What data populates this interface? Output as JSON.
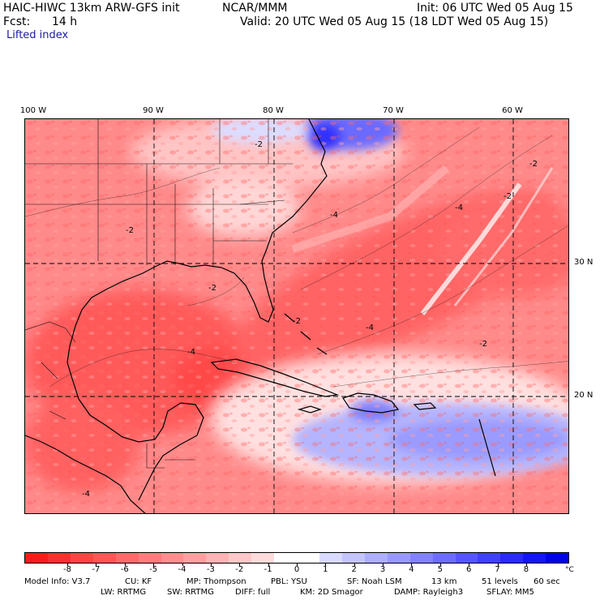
{
  "header": {
    "model_title": "HAIC-HIWC 13km ARW-GFS init",
    "org": "NCAR/MMM",
    "fcst_label": "Fcst:",
    "fcst_value": "14 h",
    "init": "Init: 06 UTC Wed 05 Aug 15",
    "valid": "Valid: 20 UTC Wed 05 Aug 15 (18 LDT Wed 05 Aug 15)",
    "field": "Lifted index"
  },
  "map": {
    "longitude_labels": [
      "100 W",
      "90 W",
      "80 W",
      "70 W",
      "60 W"
    ],
    "latitude_labels": [
      "30 N",
      "20 N"
    ],
    "contour_labels": [
      "-2",
      "-2",
      "-4",
      "-2",
      "-4",
      "-4",
      "-2",
      "-2",
      "-4",
      "-2",
      "-4",
      "-2"
    ]
  },
  "colorbar": {
    "unit": "°C",
    "tick_labels": [
      "-8",
      "-7",
      "-6",
      "-5",
      "-4",
      "-3",
      "-2",
      "-1",
      "0",
      "1",
      "2",
      "3",
      "4",
      "5",
      "6",
      "7",
      "8"
    ],
    "colors": [
      "#ff1a1a",
      "#ff2e2e",
      "#ff4444",
      "#ff5656",
      "#ff6a6a",
      "#ff7c7c",
      "#ff8e8e",
      "#ffa0a0",
      "#ffb4b4",
      "#ffc8c8",
      "#ffdcdc",
      "#ffffff",
      "#ffffff",
      "#dadaff",
      "#c4c4ff",
      "#aeaeff",
      "#9898ff",
      "#8282ff",
      "#6c6cff",
      "#5656ff",
      "#4040ff",
      "#2a2aff",
      "#1414ff",
      "#0000ee"
    ]
  },
  "model_info": {
    "line1": [
      {
        "key": "model",
        "text": "Model Info: V3.7"
      },
      {
        "key": "cu",
        "text": "CU: KF"
      },
      {
        "key": "mp",
        "text": "MP: Thompson"
      },
      {
        "key": "pbl",
        "text": "PBL: YSU"
      },
      {
        "key": "sf",
        "text": "SF: Noah LSM"
      },
      {
        "key": "res",
        "text": "13 km"
      },
      {
        "key": "levels",
        "text": "51 levels"
      },
      {
        "key": "dt",
        "text": "60 sec"
      }
    ],
    "line2": [
      {
        "key": "lw",
        "text": "LW: RRTMG"
      },
      {
        "key": "sw",
        "text": "SW: RRTMG"
      },
      {
        "key": "diff",
        "text": "DIFF: full"
      },
      {
        "key": "km",
        "text": "KM: 2D Smagor"
      },
      {
        "key": "damp",
        "text": "DAMP: Rayleigh3"
      },
      {
        "key": "sflay",
        "text": "SFLAY: MM5"
      }
    ]
  }
}
